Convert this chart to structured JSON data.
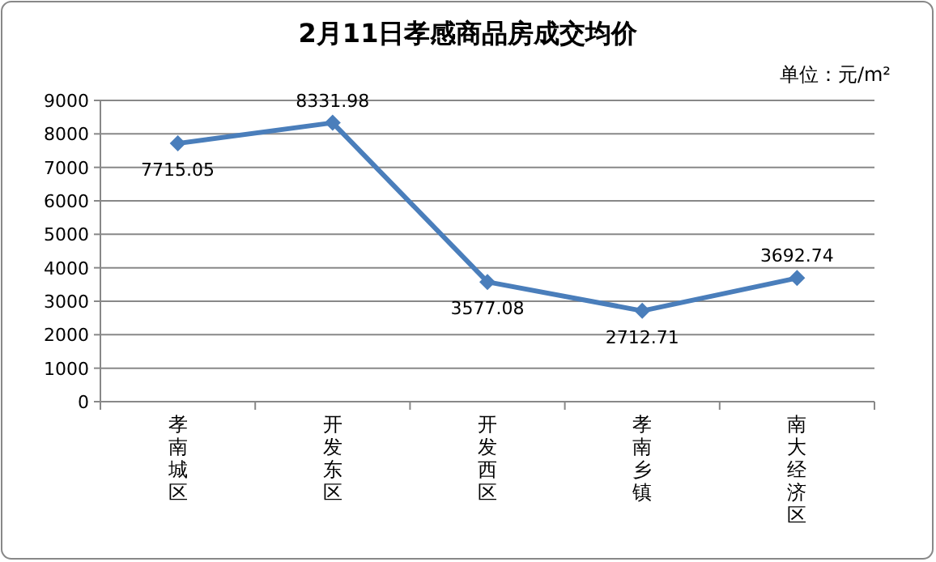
{
  "chart_data": {
    "type": "line",
    "title": "2月11日孝感商品房成交均价",
    "annotations": [
      "单位：元/m²"
    ],
    "categories": [
      "孝南城区",
      "开发东区",
      "开发西区",
      "孝南乡镇",
      "南大经济区"
    ],
    "series": [
      {
        "color": "#4a7ebb",
        "values": [
          7715.05,
          8331.98,
          3577.08,
          2712.71,
          3692.74
        ]
      }
    ],
    "ylim": [
      0,
      9000
    ],
    "yticks": [
      0,
      1000,
      2000,
      3000,
      4000,
      5000,
      6000,
      7000,
      8000,
      9000
    ],
    "grid": "y",
    "marker": "diamond",
    "data_labels": true
  }
}
